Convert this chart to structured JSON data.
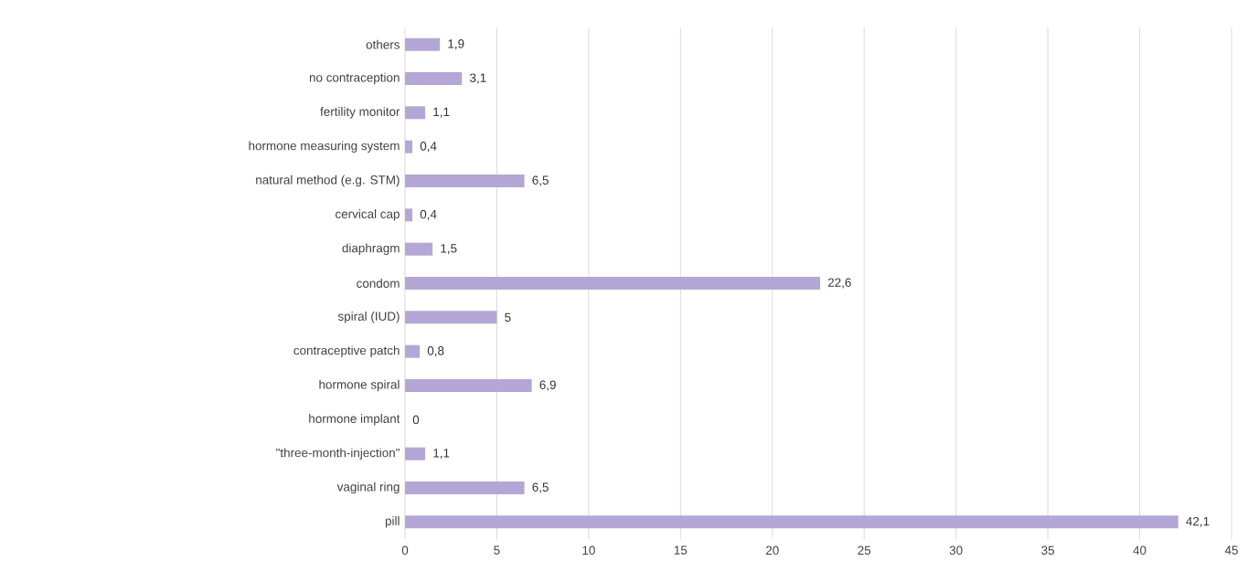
{
  "chart_data": {
    "type": "bar",
    "orientation": "horizontal",
    "categories": [
      "others",
      "no contraception",
      "fertility monitor",
      "hormone measuring system",
      "natural method (e.g. STM)",
      "cervical cap",
      "diaphragm",
      "condom",
      "spiral (IUD)",
      "contraceptive patch",
      "hormone spiral",
      "hormone implant",
      "\"three-month-injection\"",
      "vaginal ring",
      "pill"
    ],
    "values": [
      1.9,
      3.1,
      1.1,
      0.4,
      6.5,
      0.4,
      1.5,
      22.6,
      5,
      0.8,
      6.9,
      0,
      1.1,
      6.5,
      42.1
    ],
    "value_labels": [
      "1,9",
      "3,1",
      "1,1",
      "0,4",
      "6,5",
      "0,4",
      "1,5",
      "22,6",
      "5",
      "0,8",
      "6,9",
      "0",
      "1,1",
      "6,5",
      "42,1"
    ],
    "color": "#b4a7d6",
    "xlim": [
      0,
      45
    ],
    "xticks": [
      0,
      5,
      10,
      15,
      20,
      25,
      30,
      35,
      40,
      45
    ],
    "grid": "x"
  }
}
